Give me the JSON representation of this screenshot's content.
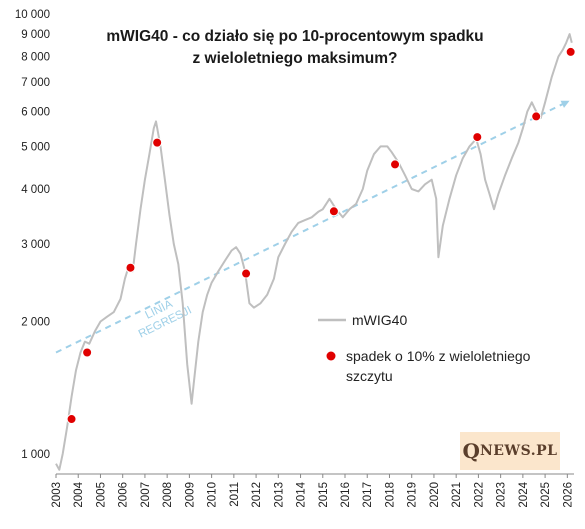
{
  "chart_data": {
    "type": "line",
    "title_line1": "mWIG40 - co działo się po 10-procentowym spadku",
    "title_line2": "z wieloletniego maksimum?",
    "y_scale": "log",
    "ylim": [
      900,
      10000
    ],
    "xlim": [
      2003.0,
      2026.3
    ],
    "y_ticks": [
      1000,
      2000,
      3000,
      4000,
      5000,
      6000,
      7000,
      8000,
      9000,
      10000
    ],
    "y_tick_labels": [
      "1 000",
      "2 000",
      "3 000",
      "4 000",
      "5 000",
      "6 000",
      "7 000",
      "8 000",
      "9 000",
      "10 000"
    ],
    "x_ticks": [
      2003,
      2004,
      2005,
      2006,
      2007,
      2008,
      2009,
      2010,
      2011,
      2012,
      2013,
      2014,
      2015,
      2016,
      2017,
      2018,
      2019,
      2020,
      2021,
      2022,
      2023,
      2024,
      2025,
      2026
    ],
    "x_tick_labels": [
      "2003",
      "2004",
      "2005",
      "2006",
      "2007",
      "2008",
      "2009",
      "2010",
      "2011",
      "2012",
      "2013",
      "2014",
      "2015",
      "2016",
      "2017",
      "2018",
      "2019",
      "2020",
      "2021",
      "2022",
      "2023",
      "2024",
      "2025",
      "2026"
    ],
    "grid": false,
    "series": [
      {
        "name": "mWIG40",
        "color": "#bfbfbf",
        "x": [
          2003.0,
          2003.15,
          2003.3,
          2003.5,
          2003.7,
          2003.9,
          2004.1,
          2004.3,
          2004.5,
          2004.75,
          2005.0,
          2005.3,
          2005.6,
          2005.9,
          2006.1,
          2006.3,
          2006.45,
          2006.6,
          2006.8,
          2007.0,
          2007.2,
          2007.4,
          2007.5,
          2007.7,
          2007.9,
          2008.1,
          2008.3,
          2008.5,
          2008.7,
          2008.9,
          2009.1,
          2009.2,
          2009.4,
          2009.6,
          2009.8,
          2010.0,
          2010.3,
          2010.6,
          2010.9,
          2011.1,
          2011.3,
          2011.5,
          2011.7,
          2011.9,
          2012.2,
          2012.5,
          2012.8,
          2013.0,
          2013.3,
          2013.6,
          2013.9,
          2014.2,
          2014.5,
          2014.8,
          2015.0,
          2015.3,
          2015.6,
          2015.9,
          2016.2,
          2016.5,
          2016.8,
          2017.0,
          2017.3,
          2017.6,
          2017.9,
          2018.1,
          2018.4,
          2018.7,
          2019.0,
          2019.3,
          2019.6,
          2019.9,
          2020.1,
          2020.2,
          2020.4,
          2020.7,
          2021.0,
          2021.3,
          2021.6,
          2021.9,
          2022.1,
          2022.3,
          2022.5,
          2022.7,
          2022.9,
          2023.2,
          2023.5,
          2023.8,
          2024.0,
          2024.2,
          2024.4,
          2024.6,
          2024.8,
          2025.0,
          2025.3,
          2025.6,
          2025.8,
          2025.95,
          2026.1,
          2026.2
        ],
        "values": [
          950,
          920,
          1000,
          1150,
          1350,
          1550,
          1700,
          1800,
          1780,
          1900,
          2000,
          2050,
          2100,
          2250,
          2500,
          2700,
          2600,
          3000,
          3600,
          4200,
          4800,
          5500,
          5700,
          5000,
          4200,
          3500,
          3000,
          2700,
          2200,
          1600,
          1300,
          1450,
          1800,
          2100,
          2300,
          2450,
          2600,
          2750,
          2900,
          2950,
          2850,
          2600,
          2200,
          2150,
          2200,
          2300,
          2500,
          2800,
          3000,
          3200,
          3350,
          3400,
          3450,
          3550,
          3600,
          3800,
          3600,
          3450,
          3600,
          3700,
          4000,
          4400,
          4800,
          5000,
          5000,
          4850,
          4600,
          4300,
          4000,
          3950,
          4100,
          4200,
          3800,
          2800,
          3300,
          3800,
          4300,
          4700,
          5000,
          5200,
          4800,
          4200,
          3900,
          3600,
          3900,
          4300,
          4700,
          5100,
          5500,
          6000,
          6300,
          6000,
          5800,
          6300,
          7200,
          8000,
          8300,
          8600,
          9000,
          8600
        ]
      },
      {
        "name": "spadek o 10% z wieloletniego szczytu",
        "color": "#e00000",
        "type": "scatter",
        "x": [
          2003.7,
          2004.4,
          2006.35,
          2007.55,
          2011.55,
          2015.5,
          2018.25,
          2021.95,
          2024.6,
          2026.15
        ],
        "values": [
          1200,
          1700,
          2650,
          5100,
          2570,
          3560,
          4550,
          5250,
          5850,
          8200
        ]
      }
    ],
    "regression_line": {
      "label_line1": "LINIA",
      "label_line2": "REGRESJI",
      "color": "#9fd0e8",
      "x": [
        2003.0,
        2026.1
      ],
      "values": [
        1700,
        6350
      ]
    },
    "legend": {
      "placement": "center-right",
      "line_label": "mWIG40",
      "marker_label_line1": "spadek o 10% z wieloletniego",
      "marker_label_line2": "szczytu"
    }
  },
  "logo": {
    "big_letter": "Q",
    "rest": "NEWS.PL"
  }
}
